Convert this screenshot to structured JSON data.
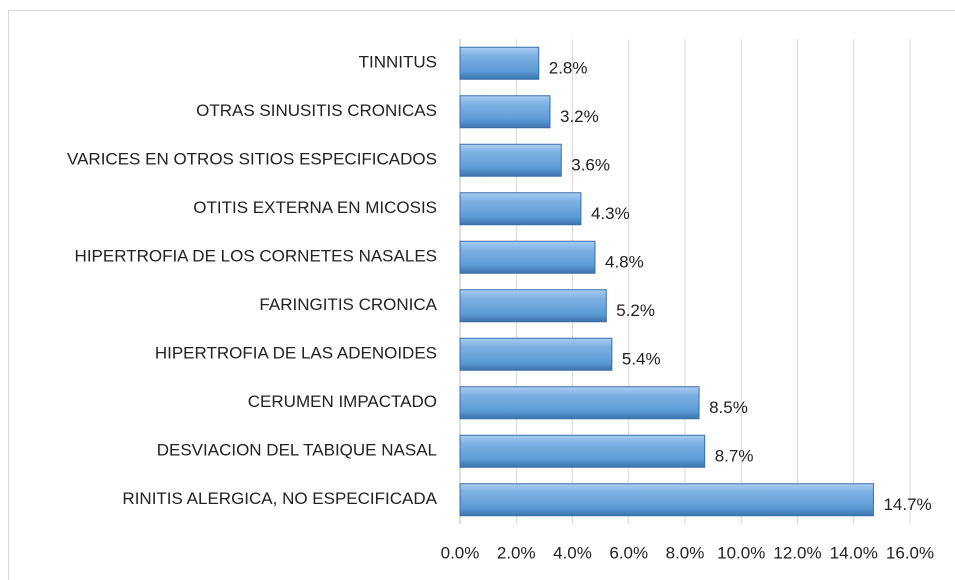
{
  "chart_data": {
    "type": "bar",
    "orientation": "horizontal",
    "categories": [
      "TINNITUS",
      "OTRAS SINUSITIS CRONICAS",
      "VARICES EN OTROS SITIOS ESPECIFICADOS",
      "OTITIS EXTERNA EN MICOSIS",
      "HIPERTROFIA DE LOS CORNETES NASALES",
      "FARINGITIS CRONICA",
      "HIPERTROFIA DE LAS ADENOIDES",
      "CERUMEN IMPACTADO",
      "DESVIACION DEL TABIQUE NASAL",
      "RINITIS ALERGICA, NO ESPECIFICADA"
    ],
    "values": [
      2.8,
      3.2,
      3.6,
      4.3,
      4.8,
      5.2,
      5.4,
      8.5,
      8.7,
      14.7
    ],
    "value_labels": [
      "2.8%",
      "3.2%",
      "3.6%",
      "4.3%",
      "4.8%",
      "5.2%",
      "5.4%",
      "8.5%",
      "8.7%",
      "14.7%"
    ],
    "color": "#5b9bd5",
    "xlim": [
      0,
      16
    ],
    "xticks": [
      {
        "value": 0,
        "label": "0.0%"
      },
      {
        "value": 2,
        "label": "2.0%"
      },
      {
        "value": 4,
        "label": "4.0%"
      },
      {
        "value": 6,
        "label": "6.0%"
      },
      {
        "value": 8,
        "label": "8.0%"
      },
      {
        "value": 10,
        "label": "10.0%"
      },
      {
        "value": 12,
        "label": "12.0%"
      },
      {
        "value": 14,
        "label": "14.0%"
      },
      {
        "value": 16,
        "label": "16.0%"
      }
    ],
    "grid": true
  }
}
